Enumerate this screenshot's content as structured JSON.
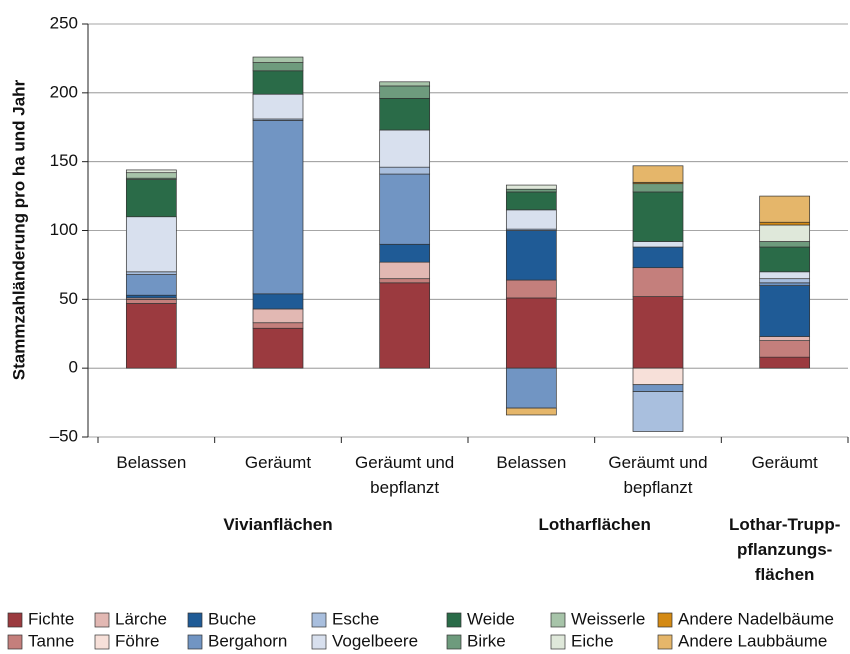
{
  "chart_data": {
    "type": "stacked_bar",
    "y_label": "Stammzahländerung pro ha und Jahr",
    "categories": [
      "Belassen",
      "Geräumt",
      "Geräumt und bepflanzt",
      "Belassen",
      "Geräumt und bepflanzt",
      "Geräumt"
    ],
    "groups": [
      {
        "name": "Vivianflächen",
        "span": 3
      },
      {
        "name": "Lotharflächen",
        "span": 2
      },
      {
        "name": "Lothar-Trupp-pflanzungs-flächen",
        "span": 1
      }
    ],
    "ylim": [
      -50,
      250
    ],
    "yticks": [
      {
        "value": -50,
        "label": "–50"
      },
      0,
      50,
      100,
      150,
      200,
      250
    ],
    "grid": true,
    "series": [
      {
        "name": "Fichte",
        "color": "#9b3a3f",
        "values": [
          47,
          29,
          62,
          51,
          52,
          8
        ]
      },
      {
        "name": "Tanne",
        "color": "#c47f7c",
        "values": [
          3,
          4,
          3,
          13,
          21,
          12
        ]
      },
      {
        "name": "Lärche",
        "color": "#e2b8b3",
        "values": [
          1,
          10,
          12,
          0,
          0,
          3
        ]
      },
      {
        "name": "Föhre",
        "color": "#f7e0d9",
        "values": [
          0,
          0,
          0,
          0,
          -12,
          0
        ]
      },
      {
        "name": "Buche",
        "color": "#1f5b96",
        "values": [
          2,
          11,
          13,
          36,
          15,
          37
        ]
      },
      {
        "name": "Bergahorn",
        "color": "#7195c3",
        "values": [
          15,
          126,
          51,
          -29,
          -5,
          2
        ]
      },
      {
        "name": "Esche",
        "color": "#a9bfde",
        "values": [
          2,
          1,
          5,
          1,
          -29,
          3
        ]
      },
      {
        "name": "Vogelbeere",
        "color": "#d8e0ee",
        "values": [
          40,
          18,
          27,
          14,
          4,
          5
        ]
      },
      {
        "name": "Weide",
        "color": "#2a6b48",
        "values": [
          27,
          17,
          23,
          13,
          36,
          18
        ]
      },
      {
        "name": "Birke",
        "color": "#6e9b7d",
        "values": [
          1,
          6,
          9,
          2,
          6,
          4
        ]
      },
      {
        "name": "Weisserle",
        "color": "#a7c4a9",
        "values": [
          4,
          4,
          3,
          0,
          0,
          0
        ]
      },
      {
        "name": "Eiche",
        "color": "#dfe8da",
        "values": [
          2,
          0,
          0,
          3,
          0,
          12
        ]
      },
      {
        "name": "Andere Nadelbäume",
        "color": "#d48a14",
        "values": [
          0,
          0,
          0,
          0,
          1,
          2
        ]
      },
      {
        "name": "Andere Laubbäume",
        "color": "#e5b66a",
        "values": [
          0,
          0,
          0,
          -5,
          12,
          19
        ]
      }
    ]
  }
}
